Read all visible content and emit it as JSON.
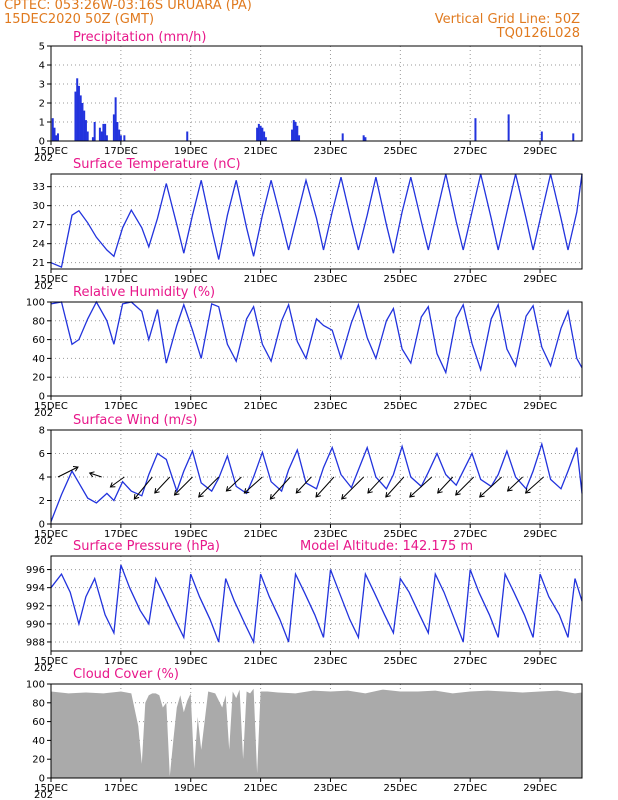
{
  "header": {
    "left_line1": "CPTEC:  053:26W-03:16S  URUARA (PA)",
    "left_line2": "15DEC2020 50Z (GMT)",
    "right_line1": "Vertical Grid Line: 50Z",
    "right_line2": "TQ0126L028"
  },
  "x_axis": {
    "tick_labels": [
      "15DEC",
      "17DEC",
      "19DEC",
      "21DEC",
      "23DEC",
      "25DEC",
      "27DEC",
      "29DEC"
    ],
    "tick_days": [
      0,
      2,
      4,
      6,
      8,
      10,
      12,
      14
    ],
    "domain_days": [
      0,
      15.2
    ],
    "year_fragment": "202"
  },
  "colors": {
    "line": "#2233dd",
    "cloud": "#aaaaaa",
    "title": "#e8178a",
    "header": "#e07a1f"
  },
  "chart_data": [
    {
      "type": "bar",
      "title": "Precipitation (mm/h)",
      "ylim": [
        0,
        5
      ],
      "yticks": [
        0,
        1,
        2,
        3,
        4,
        5
      ],
      "x": [
        0.05,
        0.1,
        0.15,
        0.2,
        0.7,
        0.75,
        0.8,
        0.85,
        0.9,
        0.95,
        1.0,
        1.05,
        1.2,
        1.25,
        1.4,
        1.45,
        1.5,
        1.55,
        1.6,
        1.8,
        1.85,
        1.9,
        1.95,
        2.0,
        2.1,
        3.9,
        5.9,
        5.95,
        6.0,
        6.05,
        6.1,
        6.15,
        6.9,
        6.95,
        7.0,
        7.05,
        7.1,
        8.35,
        8.95,
        9.0,
        12.15,
        13.1,
        14.05,
        14.95
      ],
      "values": [
        1.2,
        0.7,
        0.3,
        0.4,
        2.6,
        3.3,
        2.9,
        2.4,
        2.0,
        1.6,
        1.1,
        0.5,
        0.2,
        1.0,
        0.7,
        0.5,
        0.9,
        0.9,
        0.3,
        1.4,
        2.3,
        1.0,
        0.6,
        0.3,
        0.3,
        0.5,
        0.7,
        0.9,
        0.8,
        0.7,
        0.5,
        0.2,
        0.6,
        1.1,
        1.0,
        0.8,
        0.3,
        0.4,
        0.3,
        0.2,
        1.2,
        1.4,
        0.5,
        0.4
      ]
    },
    {
      "type": "line",
      "title": "Surface Temperature (nC)",
      "ylim": [
        20,
        35
      ],
      "yticks": [
        21,
        24,
        27,
        30,
        33
      ],
      "x": [
        0,
        0.3,
        0.6,
        0.8,
        1.05,
        1.3,
        1.6,
        1.8,
        2.05,
        2.3,
        2.6,
        2.8,
        3.05,
        3.3,
        3.6,
        3.8,
        4.05,
        4.3,
        4.6,
        4.8,
        5.05,
        5.3,
        5.6,
        5.8,
        6.05,
        6.3,
        6.6,
        6.8,
        7.05,
        7.3,
        7.6,
        7.8,
        8.05,
        8.3,
        8.6,
        8.8,
        9.05,
        9.3,
        9.6,
        9.8,
        10.05,
        10.3,
        10.6,
        10.8,
        11.05,
        11.3,
        11.6,
        11.8,
        12.05,
        12.3,
        12.6,
        12.8,
        13.05,
        13.3,
        13.6,
        13.8,
        14.05,
        14.3,
        14.6,
        14.8,
        15.05,
        15.2
      ],
      "values": [
        21,
        20.3,
        28.5,
        29.2,
        27.3,
        25,
        23,
        22,
        26.5,
        29.3,
        26.5,
        23.5,
        28,
        33.5,
        27,
        22.5,
        28.5,
        34,
        26.3,
        21.5,
        28.5,
        34,
        26.5,
        22,
        28.5,
        34,
        27.5,
        23,
        28.5,
        34,
        28,
        23,
        29,
        34.5,
        27.5,
        23,
        28.5,
        34.5,
        27,
        22.5,
        29,
        34.5,
        27.5,
        23,
        29,
        35,
        27.5,
        23,
        29,
        35,
        28,
        23,
        29,
        35,
        28,
        23,
        29,
        35,
        28,
        23,
        29,
        35
      ]
    },
    {
      "type": "line",
      "title": "Relative Humidity (%)",
      "ylim": [
        0,
        100
      ],
      "yticks": [
        0,
        20,
        40,
        60,
        80,
        100
      ],
      "x": [
        0,
        0.3,
        0.6,
        0.8,
        1.05,
        1.3,
        1.6,
        1.8,
        2.05,
        2.3,
        2.6,
        2.8,
        3.05,
        3.3,
        3.6,
        3.8,
        4.05,
        4.3,
        4.6,
        4.8,
        5.05,
        5.3,
        5.6,
        5.8,
        6.05,
        6.3,
        6.6,
        6.8,
        7.05,
        7.3,
        7.6,
        7.8,
        8.05,
        8.3,
        8.6,
        8.8,
        9.05,
        9.3,
        9.6,
        9.8,
        10.05,
        10.3,
        10.6,
        10.8,
        11.05,
        11.3,
        11.6,
        11.8,
        12.05,
        12.3,
        12.6,
        12.8,
        13.05,
        13.3,
        13.6,
        13.8,
        14.05,
        14.3,
        14.6,
        14.8,
        15.05,
        15.2
      ],
      "values": [
        98,
        100,
        55,
        60,
        82,
        100,
        80,
        55,
        98,
        100,
        90,
        60,
        92,
        35,
        75,
        97,
        70,
        40,
        98,
        95,
        55,
        37,
        82,
        95,
        55,
        37,
        80,
        97,
        58,
        40,
        82,
        75,
        70,
        40,
        78,
        97,
        62,
        40,
        80,
        93,
        50,
        35,
        84,
        95,
        45,
        25,
        83,
        97,
        56,
        28,
        82,
        97,
        50,
        32,
        85,
        96,
        52,
        32,
        72,
        90,
        40,
        30
      ]
    },
    {
      "type": "line",
      "title": "Surface Wind (m/s)",
      "ylim": [
        0,
        8
      ],
      "yticks": [
        0,
        2,
        4,
        6,
        8
      ],
      "x": [
        0,
        0.3,
        0.6,
        0.8,
        1.05,
        1.3,
        1.6,
        1.8,
        2.05,
        2.3,
        2.6,
        2.8,
        3.05,
        3.3,
        3.6,
        3.8,
        4.05,
        4.3,
        4.6,
        4.8,
        5.05,
        5.3,
        5.6,
        5.8,
        6.05,
        6.3,
        6.6,
        6.8,
        7.05,
        7.3,
        7.6,
        7.8,
        8.05,
        8.3,
        8.6,
        8.8,
        9.05,
        9.3,
        9.6,
        9.8,
        10.05,
        10.3,
        10.6,
        10.8,
        11.05,
        11.3,
        11.6,
        11.8,
        12.05,
        12.3,
        12.6,
        12.8,
        13.05,
        13.3,
        13.6,
        13.8,
        14.05,
        14.3,
        14.6,
        14.8,
        15.05,
        15.2
      ],
      "values": [
        0.2,
        2.5,
        4.5,
        3.5,
        2.2,
        1.8,
        2.6,
        2.0,
        3.6,
        2.8,
        2.4,
        4.2,
        6.0,
        5.5,
        2.8,
        4.5,
        6.2,
        3.5,
        2.8,
        3.9,
        5.8,
        3.2,
        2.6,
        4.0,
        6.1,
        3.6,
        2.8,
        4.6,
        6.3,
        3.5,
        3.0,
        4.8,
        6.5,
        4.2,
        3.1,
        4.6,
        6.5,
        4.0,
        3.0,
        4.2,
        6.6,
        4.0,
        3.2,
        4.4,
        6.0,
        4.2,
        3.3,
        4.5,
        6.0,
        3.8,
        3.2,
        4.2,
        6.2,
        4.0,
        3.0,
        4.5,
        6.8,
        3.8,
        3.0,
        4.5,
        6.5,
        2.6
      ],
      "arrows": {
        "x": [
          0.2,
          1.45,
          2.1,
          2.9,
          3.4,
          4.05,
          4.8,
          5.45,
          6.05,
          6.85,
          7.45,
          8.1,
          8.95,
          9.5,
          10.1,
          10.9,
          11.5,
          12.1,
          12.9,
          13.5,
          14.1
        ],
        "dx": [
          20,
          -12,
          -14,
          -18,
          -15,
          -18,
          -20,
          -15,
          -18,
          -20,
          -15,
          -18,
          -22,
          -15,
          -18,
          -22,
          -15,
          -18,
          -22,
          -15,
          -18
        ],
        "dy": [
          -10,
          -4,
          10,
          22,
          16,
          18,
          20,
          14,
          16,
          22,
          16,
          20,
          22,
          16,
          20,
          20,
          16,
          18,
          20,
          14,
          16
        ]
      }
    },
    {
      "type": "line",
      "title": "Surface Pressure (hPa)",
      "annotation": "Model Altitude: 142.175 m",
      "ylim": [
        987,
        997.5
      ],
      "yticks": [
        988,
        990,
        992,
        994,
        996
      ],
      "x": [
        0,
        0.3,
        0.55,
        0.8,
        1.0,
        1.25,
        1.55,
        1.8,
        2.0,
        2.25,
        2.55,
        2.8,
        3.0,
        3.25,
        3.55,
        3.8,
        4.0,
        4.25,
        4.55,
        4.8,
        5.0,
        5.25,
        5.55,
        5.8,
        6.0,
        6.25,
        6.55,
        6.8,
        7.0,
        7.25,
        7.55,
        7.8,
        8.0,
        8.25,
        8.55,
        8.8,
        9.0,
        9.25,
        9.55,
        9.8,
        10.0,
        10.25,
        10.55,
        10.8,
        11.0,
        11.25,
        11.55,
        11.8,
        12.0,
        12.25,
        12.55,
        12.8,
        13.0,
        13.25,
        13.55,
        13.8,
        14.0,
        14.25,
        14.55,
        14.8,
        15.0,
        15.2
      ],
      "values": [
        994,
        995.5,
        993.5,
        990,
        993,
        995,
        991,
        989,
        996.5,
        994,
        991.5,
        990,
        995,
        993,
        990.5,
        988.5,
        995.5,
        993,
        990.5,
        988,
        995,
        992.5,
        990,
        988,
        995.5,
        993,
        990.5,
        988,
        995.5,
        993.5,
        991,
        988.5,
        996,
        993.5,
        990.5,
        988.5,
        995.5,
        993.5,
        991,
        989,
        995,
        993.5,
        991,
        989,
        995.5,
        993.5,
        990.5,
        988,
        996,
        993.5,
        991,
        988.5,
        995.5,
        993.5,
        991,
        988.5,
        995.5,
        993,
        991,
        988.5,
        995,
        992.5
      ]
    },
    {
      "type": "area",
      "title": "Cloud Cover (%)",
      "ylim": [
        0,
        100
      ],
      "yticks": [
        0,
        20,
        40,
        60,
        80,
        100
      ],
      "x": [
        0,
        0.5,
        1.0,
        1.5,
        2.0,
        2.3,
        2.5,
        2.6,
        2.7,
        2.8,
        2.9,
        3.0,
        3.1,
        3.2,
        3.3,
        3.4,
        3.5,
        3.6,
        3.7,
        3.8,
        3.9,
        4.0,
        4.1,
        4.2,
        4.3,
        4.5,
        4.7,
        4.9,
        5.0,
        5.1,
        5.2,
        5.3,
        5.4,
        5.5,
        5.6,
        5.7,
        5.8,
        5.9,
        6.0,
        6.2,
        6.5,
        7.0,
        7.5,
        8.0,
        8.5,
        9.0,
        9.5,
        10.0,
        10.5,
        11.0,
        11.5,
        12.0,
        12.5,
        13.0,
        13.5,
        14.0,
        14.5,
        15.0,
        15.2
      ],
      "values": [
        92,
        90,
        91,
        90,
        92,
        90,
        55,
        15,
        80,
        88,
        90,
        90,
        88,
        75,
        80,
        2,
        40,
        75,
        88,
        70,
        82,
        90,
        10,
        65,
        30,
        92,
        90,
        75,
        88,
        30,
        92,
        85,
        94,
        20,
        92,
        90,
        95,
        5,
        92,
        92,
        91,
        90,
        93,
        92,
        93,
        90,
        94,
        92,
        92,
        93,
        90,
        92,
        93,
        92,
        91,
        92,
        93,
        90,
        91
      ]
    }
  ]
}
